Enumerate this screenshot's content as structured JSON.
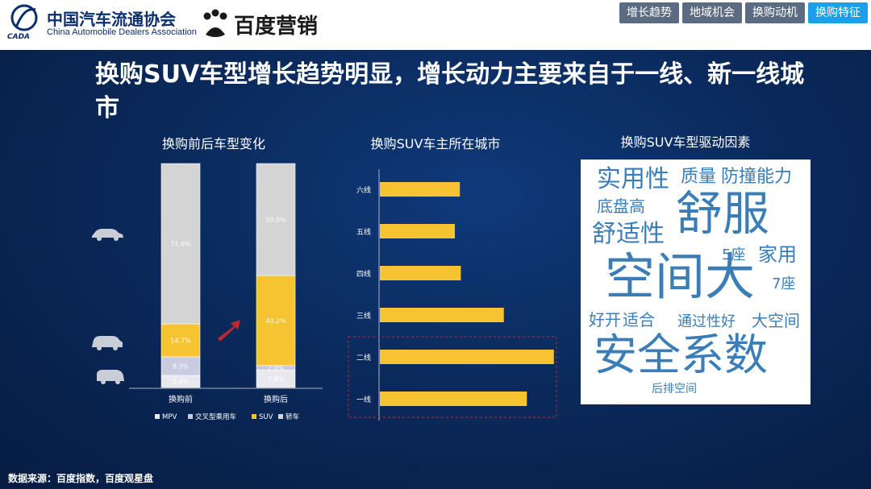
{
  "header": {
    "org_name_cn": "中国汽车流通协会",
    "org_name_en": "China Automobile Dealers Association",
    "org_logo_text": "CADA",
    "partner_name": "百度营销"
  },
  "tabs": [
    {
      "label": "增长趋势",
      "active": false
    },
    {
      "label": "地域机会",
      "active": false
    },
    {
      "label": "换购动机",
      "active": false
    },
    {
      "label": "换购特征",
      "active": true
    }
  ],
  "title": "换购SUV车型增长趋势明显，增长动力主要来自于一线、新一线城市",
  "source": "数据来源：百度指数，百度观星盘",
  "colors": {
    "suv": "#f5c430",
    "sedan": "#d4d4d4",
    "mpv": "#e8e8ee",
    "cross": "#c8cce0",
    "accent_tab": "#1aa0e8",
    "cloud_text": "#3b7db6",
    "highlight_box": "#c0282c"
  },
  "chart_data": [
    {
      "type": "bar",
      "stacked": true,
      "title": "换购前后车型变化",
      "categories": [
        "换购前",
        "换购后"
      ],
      "series": [
        {
          "name": "MPV",
          "values": [
            5.4,
            7.8
          ],
          "labels": [
            "5.4%",
            "7.8%"
          ]
        },
        {
          "name": "交叉型乘用车",
          "values": [
            8.3,
            2.0
          ],
          "labels": [
            "8.3%",
            "2.0%"
          ]
        },
        {
          "name": "SUV",
          "values": [
            14.7,
            40.2
          ],
          "labels": [
            "14.7%",
            "40.2%"
          ]
        },
        {
          "name": "轿车",
          "values": [
            71.6,
            50.0
          ],
          "labels": [
            "71.6%",
            "50.0%"
          ]
        }
      ],
      "ylim": [
        0,
        100
      ],
      "legend_position": "bottom"
    },
    {
      "type": "bar",
      "orientation": "horizontal",
      "title": "换购SUV车主所在城市",
      "categories": [
        "六线",
        "五线",
        "四线",
        "三线",
        "二线",
        "一线"
      ],
      "values": [
        0.8,
        0.75,
        0.81,
        1.24,
        1.74,
        1.47
      ],
      "highlighted": [
        "二线",
        "一线"
      ]
    },
    {
      "type": "wordcloud",
      "title": "换购SUV车型驱动因素",
      "words": [
        {
          "text": "实用性"
        },
        {
          "text": "质量"
        },
        {
          "text": "防撞能力"
        },
        {
          "text": "底盘高"
        },
        {
          "text": "舒服"
        },
        {
          "text": "舒适性"
        },
        {
          "text": "空间大"
        },
        {
          "text": "5座"
        },
        {
          "text": "家用"
        },
        {
          "text": "7座"
        },
        {
          "text": "好开"
        },
        {
          "text": "适合"
        },
        {
          "text": "通过性好"
        },
        {
          "text": "大空间"
        },
        {
          "text": "安全系数"
        },
        {
          "text": "后排空间"
        }
      ]
    }
  ]
}
